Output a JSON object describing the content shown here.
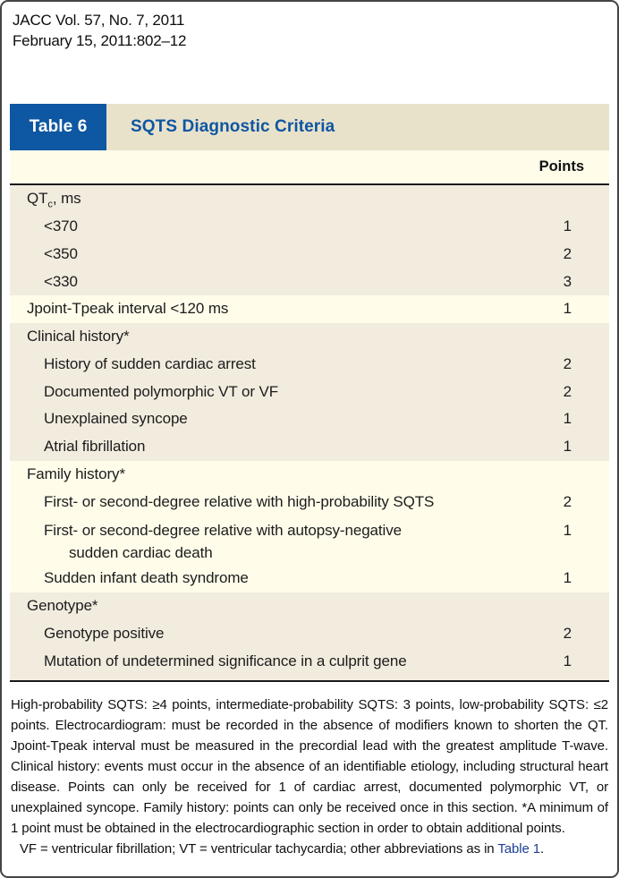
{
  "masthead": {
    "line1": "JACC Vol. 57, No. 7, 2011",
    "line2": "February 15, 2011:802–12"
  },
  "table": {
    "label": "Table 6",
    "title": "SQTS Diagnostic Criteria",
    "points_header": "Points",
    "sections": [
      {
        "tone": "tan",
        "rows": [
          {
            "indent": 0,
            "pre": "QT",
            "sub": "c",
            "post": ", ms",
            "points": ""
          },
          {
            "indent": 1,
            "text": "<370",
            "points": "1"
          },
          {
            "indent": 1,
            "text": "<350",
            "points": "2"
          },
          {
            "indent": 1,
            "text": "<330",
            "points": "3"
          }
        ]
      },
      {
        "tone": "cream",
        "rows": [
          {
            "indent": 0,
            "text": "Jpoint-Tpeak interval <120 ms",
            "points": "1"
          }
        ]
      },
      {
        "tone": "tan",
        "rows": [
          {
            "indent": 0,
            "text": "Clinical history*",
            "points": ""
          },
          {
            "indent": 1,
            "text": "History of sudden cardiac arrest",
            "points": "2"
          },
          {
            "indent": 1,
            "text": "Documented polymorphic VT or VF",
            "points": "2"
          },
          {
            "indent": 1,
            "text": "Unexplained syncope",
            "points": "1"
          },
          {
            "indent": 1,
            "text": "Atrial fibrillation",
            "points": "1"
          }
        ]
      },
      {
        "tone": "cream",
        "rows": [
          {
            "indent": 0,
            "text": "Family history*",
            "points": ""
          },
          {
            "indent": 1,
            "text": "First- or second-degree relative with high-probability SQTS",
            "points": "2"
          },
          {
            "indent": 1,
            "text": "First- or second-degree relative with autopsy-negative",
            "line2": "sudden cardiac death",
            "points": "1"
          },
          {
            "indent": 1,
            "text": "Sudden infant death syndrome",
            "points": "1"
          }
        ]
      },
      {
        "tone": "tan",
        "rows": [
          {
            "indent": 0,
            "text": "Genotype*",
            "points": ""
          },
          {
            "indent": 1,
            "text": "Genotype positive",
            "points": "2"
          },
          {
            "indent": 1,
            "text": "Mutation of undetermined significance in a culprit gene",
            "points": "1"
          }
        ]
      }
    ]
  },
  "footnote": {
    "para1": "High-probability SQTS: ≥4 points, intermediate-probability SQTS: 3 points, low-probability SQTS: ≤2 points. Electrocardiogram: must be recorded in the absence of modifiers known to shorten the QT. Jpoint-Tpeak interval must be measured in the precordial lead with the greatest amplitude T-wave. Clinical history: events must occur in the absence of an identifiable etiology, including structural heart disease. Points can only be received for 1 of cardiac arrest, documented polymorphic VT, or unexplained syncope. Family history: points can only be received once in this section. *A minimum of 1 point must be obtained in the electrocardiographic section in order to obtain additional points.",
    "para2_text": "VF = ventricular fibrillation; VT = ventricular tachycardia; other abbreviations as in ",
    "para2_link": "Table 1",
    "para2_end": "."
  },
  "colors": {
    "accent_blue": "#0e57a2",
    "strip_tan": "#e9e2cb",
    "section_tan": "#f2ecdf",
    "section_cream": "#fffcea",
    "rule_black": "#1a1a1a",
    "link_blue": "#1c3e94"
  }
}
